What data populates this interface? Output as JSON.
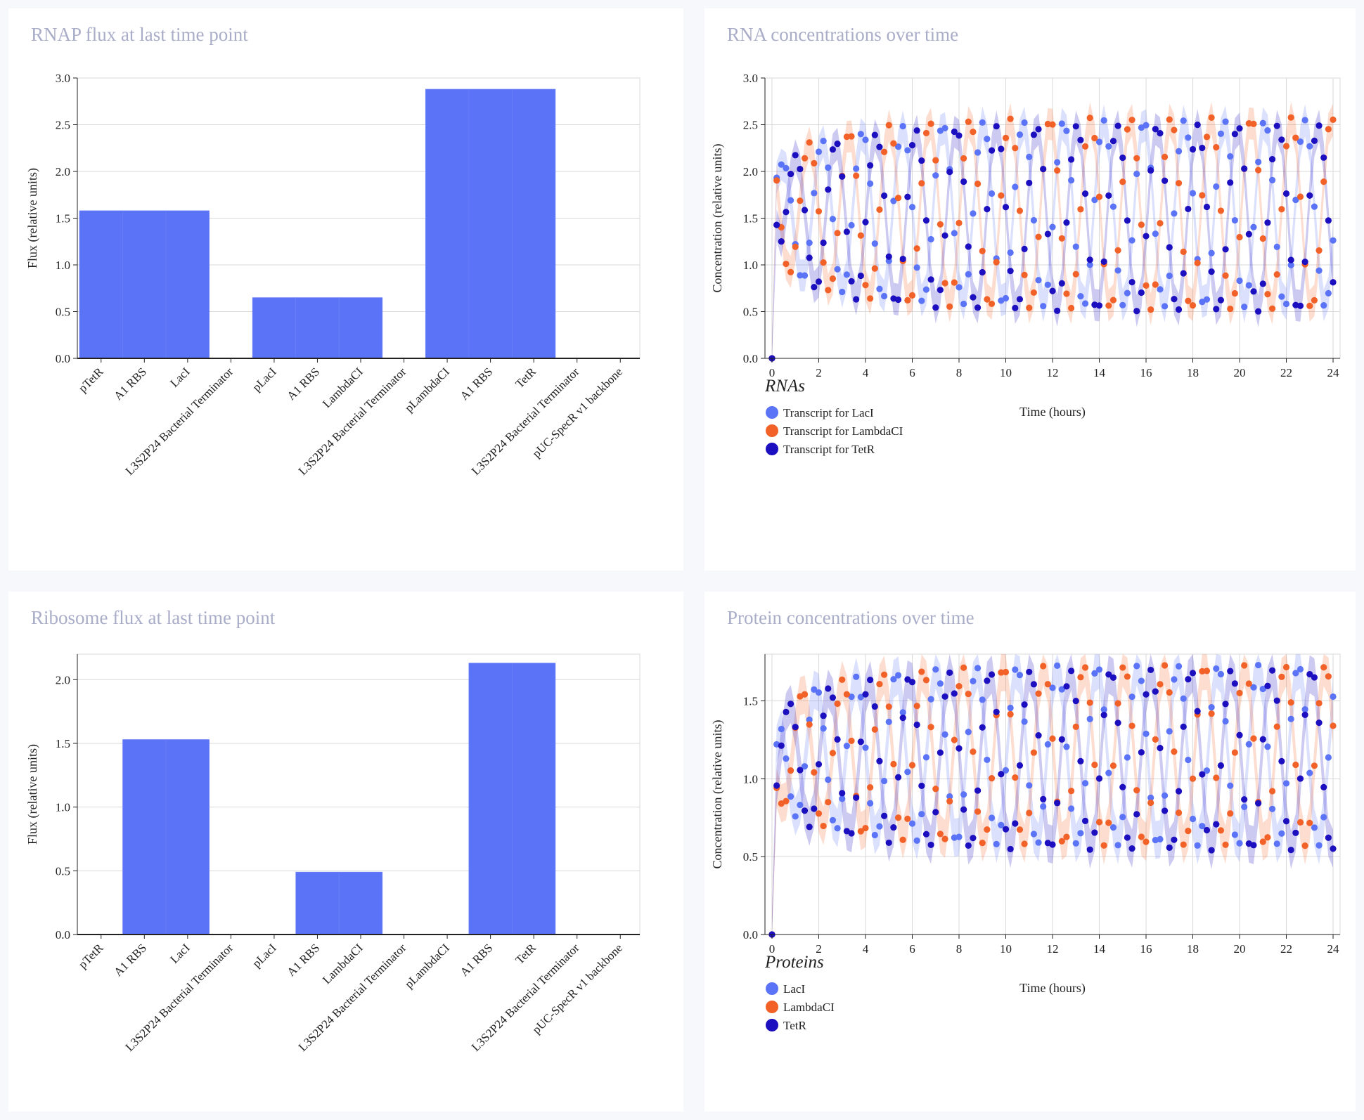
{
  "panels": {
    "rnap": {
      "title": "RNAP flux at last time point"
    },
    "rna": {
      "title": "RNA concentrations over time"
    },
    "ribosome": {
      "title": "Ribosome flux at last time point"
    },
    "protein": {
      "title": "Protein concentrations over time"
    }
  },
  "colors": {
    "bar": "#5b73f6",
    "LacI": "#5b73f6",
    "LambdaCI": "#f26228",
    "TetR": "#1c0fbf",
    "grid": "#d9d9d9",
    "axis": "#222222"
  },
  "chart_data": [
    {
      "id": "rnap",
      "type": "bar",
      "title": "RNAP flux at last time point",
      "xlabel": "",
      "ylabel": "Flux (relative units)",
      "ylim": [
        0,
        3.0
      ],
      "yticks": [
        "0.0",
        "0.5",
        "1.0",
        "1.5",
        "2.0",
        "2.5",
        "3.0"
      ],
      "categories": [
        "pTetR",
        "A1 RBS",
        "LacI",
        "L3S2P24 Bacterial Terminator",
        "pLacI",
        "A1 RBS",
        "LambdaCI",
        "L3S2P24 Bacterial Terminator",
        "pLambdaCI",
        "A1 RBS",
        "TetR",
        "L3S2P24 Bacterial Terminator",
        "pUC-SpecR v1 backbone"
      ],
      "values": [
        1.58,
        1.58,
        1.58,
        0,
        0.65,
        0.65,
        0.65,
        0,
        2.88,
        2.88,
        2.88,
        0,
        0
      ]
    },
    {
      "id": "ribosome",
      "type": "bar",
      "title": "Ribosome flux at last time point",
      "xlabel": "",
      "ylabel": "Flux (relative units)",
      "ylim": [
        0,
        2.2
      ],
      "yticks": [
        "0.0",
        "0.5",
        "1.0",
        "1.5",
        "2.0"
      ],
      "categories": [
        "pTetR",
        "A1 RBS",
        "LacI",
        "L3S2P24 Bacterial Terminator",
        "pLacI",
        "A1 RBS",
        "LambdaCI",
        "L3S2P24 Bacterial Terminator",
        "pLambdaCI",
        "A1 RBS",
        "TetR",
        "L3S2P24 Bacterial Terminator",
        "pUC-SpecR v1 backbone"
      ],
      "values": [
        0,
        1.53,
        1.53,
        0,
        0,
        0.49,
        0.49,
        0,
        0,
        2.13,
        2.13,
        0,
        0
      ]
    },
    {
      "id": "rna",
      "type": "scatter",
      "title": "RNA concentrations over time",
      "xlabel": "Time (hours)",
      "ylabel": "Concentration (relative units)",
      "xlim": [
        -0.3,
        24.3
      ],
      "ylim": [
        0,
        3.0
      ],
      "xticks": [
        "0",
        "2",
        "4",
        "6",
        "8",
        "10",
        "12",
        "14",
        "16",
        "18",
        "20",
        "22",
        "24"
      ],
      "yticks": [
        "0.0",
        "0.5",
        "1.0",
        "1.5",
        "2.0",
        "2.5",
        "3.0"
      ],
      "legend_title": "RNAs",
      "legend_placement": "bottom-left",
      "sampling": {
        "t_start": 0,
        "t_end": 24,
        "step": 0.2
      },
      "series": [
        {
          "name": "Transcript for LacI",
          "color_key": "LacI",
          "start": 2.55,
          "baseline": 1.55,
          "amplitude": 1.0,
          "period": 1.72,
          "phase": 0.0,
          "damp_period": 2.9,
          "growth": 4.5
        },
        {
          "name": "Transcript for LambdaCI",
          "color_key": "LambdaCI",
          "start": 2.88,
          "baseline": 1.55,
          "amplitude": 1.03,
          "period": 1.72,
          "phase": 2.09,
          "damp_period": 2.9,
          "growth": 4.5
        },
        {
          "name": "Transcript for TetR",
          "color_key": "TetR",
          "start": 2.5,
          "baseline": 1.5,
          "amplitude": 1.0,
          "period": 1.72,
          "phase": 4.19,
          "damp_period": 2.9,
          "growth": 4.5
        }
      ]
    },
    {
      "id": "protein",
      "type": "scatter",
      "title": "Protein concentrations over time",
      "xlabel": "Time (hours)",
      "ylabel": "Concentration (relative units)",
      "xlim": [
        -0.3,
        24.3
      ],
      "ylim": [
        0,
        1.8
      ],
      "xticks": [
        "0",
        "2",
        "4",
        "6",
        "8",
        "10",
        "12",
        "14",
        "16",
        "18",
        "20",
        "22",
        "24"
      ],
      "yticks": [
        "0.0",
        "0.5",
        "1.0",
        "1.5"
      ],
      "legend_title": "Proteins",
      "legend_placement": "bottom-left",
      "sampling": {
        "t_start": 0,
        "t_end": 24,
        "step": 0.2
      },
      "series": [
        {
          "name": "LacI",
          "color_key": "LacI",
          "start": 0.52,
          "baseline": 1.15,
          "amplitude": 0.58,
          "period": 1.72,
          "phase": 1.0,
          "damp_period": 2.9,
          "growth": 5.0
        },
        {
          "name": "LambdaCI",
          "color_key": "LambdaCI",
          "start": 0.57,
          "baseline": 1.15,
          "amplitude": 0.58,
          "period": 1.72,
          "phase": 3.1,
          "damp_period": 2.9,
          "growth": 5.0
        },
        {
          "name": "TetR",
          "color_key": "TetR",
          "start": 0.5,
          "baseline": 1.12,
          "amplitude": 0.58,
          "period": 1.72,
          "phase": 5.2,
          "damp_period": 2.9,
          "growth": 5.0
        }
      ]
    }
  ]
}
